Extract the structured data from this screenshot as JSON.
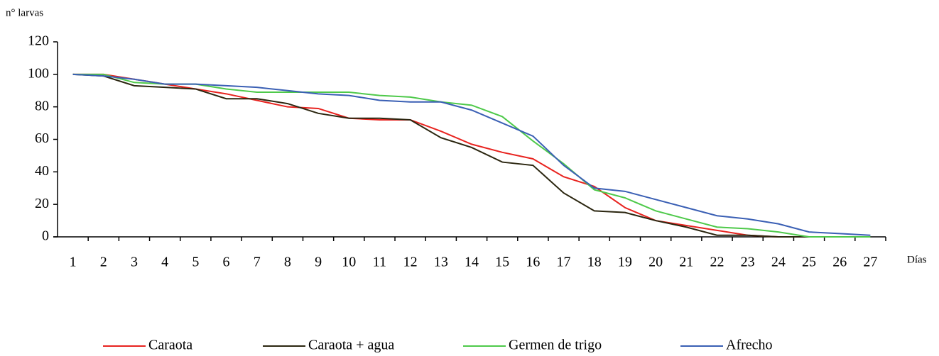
{
  "chart_data": {
    "type": "line",
    "y_label": "n° larvas",
    "x_label": "Días",
    "categories": [
      "1",
      "2",
      "3",
      "4",
      "5",
      "6",
      "7",
      "8",
      "9",
      "10",
      "11",
      "12",
      "13",
      "14",
      "15",
      "16",
      "17",
      "18",
      "19",
      "20",
      "21",
      "22",
      "23",
      "24",
      "25",
      "26",
      "27"
    ],
    "series": [
      {
        "name": "Caraota",
        "color": "#e8231f",
        "values": [
          100,
          100,
          97,
          94,
          91,
          88,
          84,
          80,
          79,
          73,
          72,
          72,
          65,
          57,
          52,
          48,
          37,
          31,
          18,
          10,
          7,
          4,
          1,
          0,
          0,
          0,
          0
        ]
      },
      {
        "name": "Caraota + agua",
        "color": "#2b2610",
        "values": [
          100,
          99,
          93,
          92,
          91,
          85,
          85,
          82,
          76,
          73,
          73,
          72,
          61,
          55,
          46,
          44,
          27,
          16,
          15,
          10,
          6,
          1,
          1,
          0,
          0,
          0,
          0
        ]
      },
      {
        "name": "Germen de trigo",
        "color": "#4ec94a",
        "values": [
          100,
          100,
          95,
          94,
          94,
          91,
          89,
          89,
          89,
          89,
          87,
          86,
          83,
          81,
          74,
          59,
          45,
          29,
          24,
          16,
          11,
          6,
          5,
          3,
          0,
          0,
          0
        ]
      },
      {
        "name": "Afrecho",
        "color": "#3a5fb4",
        "values": [
          100,
          99,
          97,
          94,
          94,
          93,
          92,
          90,
          88,
          87,
          84,
          83,
          83,
          78,
          70,
          62,
          44,
          30,
          28,
          23,
          18,
          13,
          11,
          8,
          3,
          2,
          1
        ]
      }
    ],
    "ylim": [
      0,
      120
    ],
    "yticks": [
      0,
      20,
      40,
      60,
      80,
      100,
      120
    ],
    "grid": false,
    "legend": "bottom"
  }
}
